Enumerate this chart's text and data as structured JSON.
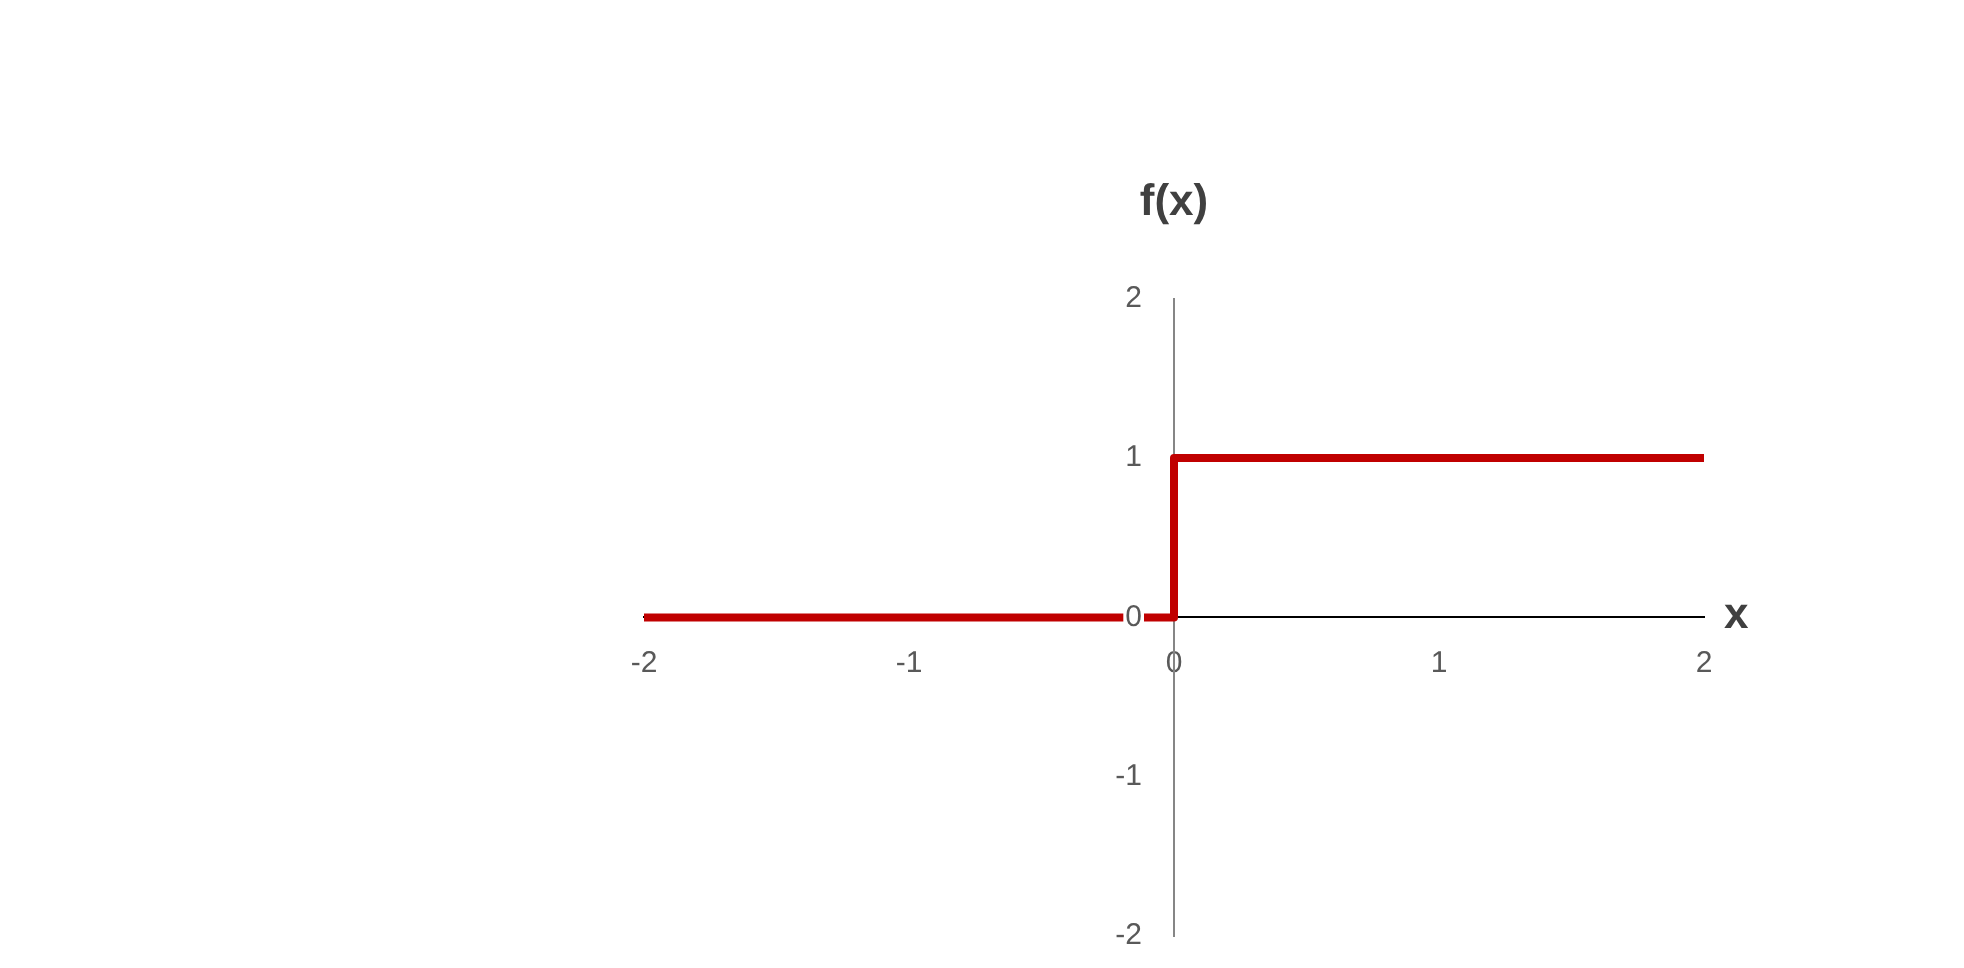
{
  "chart_data": {
    "type": "step",
    "title": "f(x)",
    "xlabel": "x",
    "x": [
      -2,
      0,
      2
    ],
    "series": [
      {
        "color": "#c00000",
        "values": [
          0,
          1,
          1
        ]
      }
    ],
    "xlim": [
      -2,
      2
    ],
    "xticks": [
      -2,
      -1,
      0,
      1,
      2
    ],
    "ylim": [
      -2,
      2
    ],
    "yticks": [
      -2,
      -1,
      0,
      1,
      2
    ],
    "grid": false,
    "legend": false
  }
}
